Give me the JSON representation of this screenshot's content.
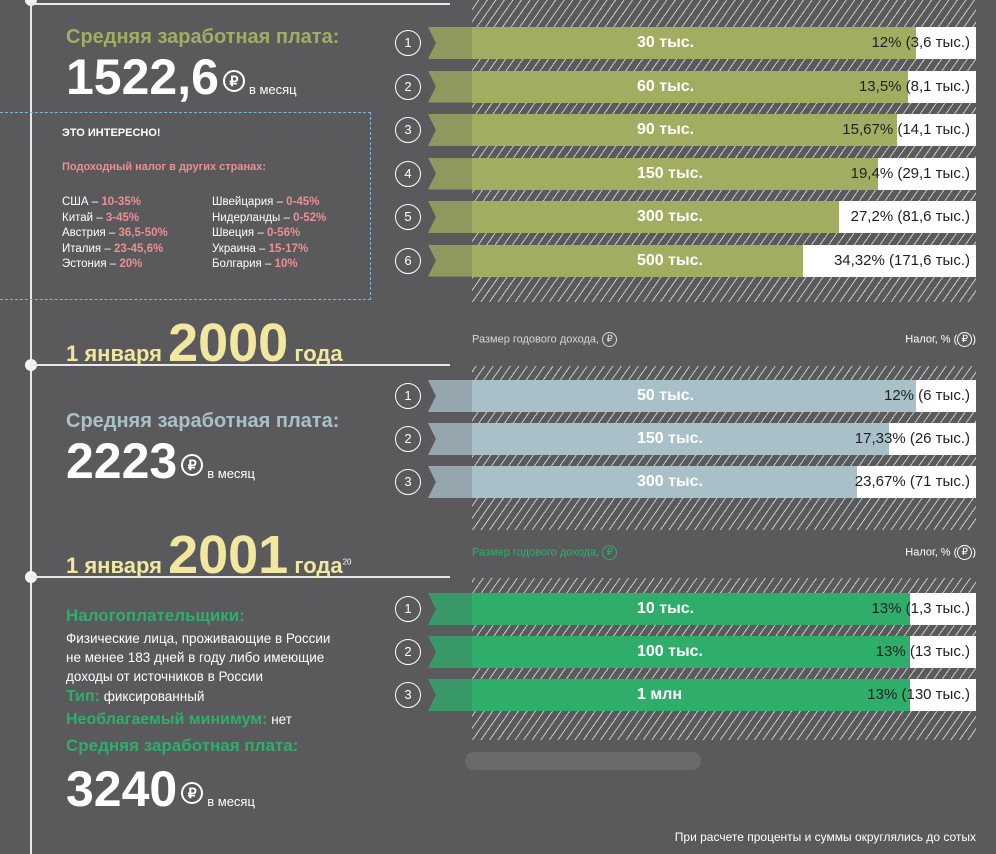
{
  "sections": [
    {
      "salary_label": "Средняя заработная плата:",
      "salary_value": "1522,6",
      "per_month": "в месяц"
    },
    {
      "date_prefix": "1 января",
      "date_year": "2000",
      "date_suffix": "года",
      "salary_label": "Средняя заработная плата:",
      "salary_value": "2223",
      "per_month": "в месяц"
    },
    {
      "date_prefix": "1 января",
      "date_year": "2001",
      "date_suffix": "года",
      "footnote": "20",
      "taxpayers_label": "Налогоплательщики:",
      "taxpayers_text_1": "Физические лица, проживающие в России",
      "taxpayers_text_2": "не менее 183 дней в году либо имеющие",
      "taxpayers_text_3": "доходы от источников в России",
      "type_label": "Тип:",
      "type_value": "фиксированный",
      "minimum_label": "Необлагаемый минимум:",
      "minimum_value": "нет",
      "salary_label": "Средняя заработная плата:",
      "salary_value": "3240",
      "per_month": "в месяц"
    }
  ],
  "interest": {
    "heading": "ЭТО ИНТЕРЕСНО!",
    "subheading": "Подоходный налог в других странах:",
    "left": [
      {
        "country": "США",
        "rate": "10-35%"
      },
      {
        "country": "Китай",
        "rate": "3-45%"
      },
      {
        "country": "Австрия",
        "rate": "36,5-50%"
      },
      {
        "country": "Италия",
        "rate": "23-45,6%"
      },
      {
        "country": "Эстония",
        "rate": "20%"
      }
    ],
    "right": [
      {
        "country": "Швейцария",
        "rate": "0-45%"
      },
      {
        "country": "Нидерланды",
        "rate": "0-52%"
      },
      {
        "country": "Швеция",
        "rate": "0-56%"
      },
      {
        "country": "Украина",
        "rate": "15-17%"
      },
      {
        "country": "Болгария",
        "rate": "10%"
      }
    ]
  },
  "axis": {
    "income_label": "Размер годового дохода,",
    "tax_label": "Налог, %",
    "ruble_symbol": "₽"
  },
  "note": "При расчете проценты и суммы округлялись до сотых",
  "chart_data": [
    {
      "type": "bar",
      "color": "#a3ad62",
      "xlim": [
        0,
        100
      ],
      "rows": [
        {
          "n": "1",
          "income": "30 тыс.",
          "rate": 12,
          "tax": "12% (3,6 тыс.)"
        },
        {
          "n": "2",
          "income": "60 тыс.",
          "rate": 13.5,
          "tax": "13,5% (8,1 тыс.)"
        },
        {
          "n": "3",
          "income": "90 тыс.",
          "rate": 15.67,
          "tax": "15,67% (14,1 тыс.)"
        },
        {
          "n": "4",
          "income": "150 тыс.",
          "rate": 19.4,
          "tax": "19,4% (29,1 тыс.)"
        },
        {
          "n": "5",
          "income": "300 тыс.",
          "rate": 27.2,
          "tax": "27,2% (81,6 тыс.)"
        },
        {
          "n": "6",
          "income": "500 тыс.",
          "rate": 34.32,
          "tax": "34,32% (171,6 тыс.)"
        }
      ]
    },
    {
      "type": "bar",
      "color": "#a9c0c9",
      "xlim": [
        0,
        100
      ],
      "rows": [
        {
          "n": "1",
          "income": "50 тыс.",
          "rate": 12,
          "tax": "12% (6 тыс.)"
        },
        {
          "n": "2",
          "income": "150 тыс.",
          "rate": 17.33,
          "tax": "17,33% (26 тыс.)"
        },
        {
          "n": "3",
          "income": "300 тыс.",
          "rate": 23.67,
          "tax": "23,67% (71 тыс.)"
        }
      ]
    },
    {
      "type": "bar",
      "color": "#2fae6b",
      "xlim": [
        0,
        100
      ],
      "rows": [
        {
          "n": "1",
          "income": "10 тыс.",
          "rate": 13,
          "tax": "13% (1,3 тыс.)"
        },
        {
          "n": "2",
          "income": "100 тыс.",
          "rate": 13,
          "tax": "13% (13 тыс.)"
        },
        {
          "n": "3",
          "income": "1 млн",
          "rate": 13,
          "tax": "13% (130 тыс.)"
        }
      ]
    }
  ]
}
